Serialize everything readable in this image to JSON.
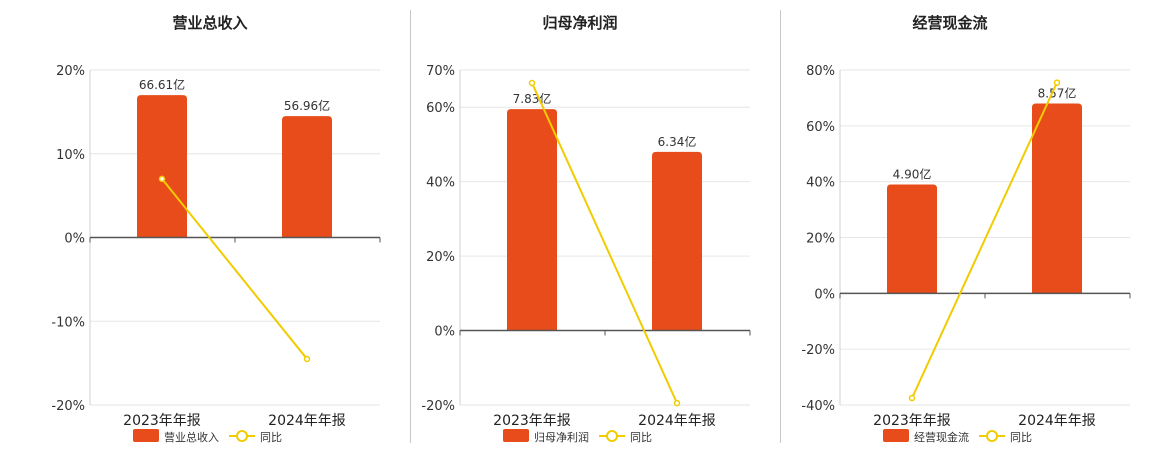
{
  "colors": {
    "bar": "#e84c1a",
    "line": "#f0cc00",
    "axis": "#555555",
    "grid": "#e6e6e6"
  },
  "chart_data": [
    {
      "type": "bar",
      "title": "营业总收入",
      "categories": [
        "2023年年报",
        "2024年年报"
      ],
      "series": [
        {
          "name": "营业总收入",
          "kind": "bar",
          "values": [
            17.0,
            14.5
          ],
          "data_labels": [
            "66.61亿",
            "56.96亿"
          ]
        },
        {
          "name": "同比",
          "kind": "line",
          "values": [
            7.0,
            -14.5
          ]
        }
      ],
      "yticks": [
        20,
        10,
        0,
        -10,
        -20
      ],
      "tick_labels": [
        "20%",
        "10%",
        "0%",
        "-10%",
        "-20%"
      ],
      "ylim": [
        -20,
        20
      ],
      "grid": true,
      "legend": "bottom"
    },
    {
      "type": "bar",
      "title": "归母净利润",
      "categories": [
        "2023年年报",
        "2024年年报"
      ],
      "series": [
        {
          "name": "归母净利润",
          "kind": "bar",
          "values": [
            59.5,
            48.0
          ],
          "data_labels": [
            "7.83亿",
            "6.34亿"
          ]
        },
        {
          "name": "同比",
          "kind": "line",
          "values": [
            66.5,
            -19.5
          ]
        }
      ],
      "yticks": [
        70,
        60,
        40,
        20,
        0,
        -20
      ],
      "tick_labels": [
        "70%",
        "60%",
        "40%",
        "20%",
        "0%",
        "-20%"
      ],
      "ylim": [
        -20,
        70
      ],
      "grid": true,
      "legend": "bottom"
    },
    {
      "type": "bar",
      "title": "经营现金流",
      "categories": [
        "2023年年报",
        "2024年年报"
      ],
      "series": [
        {
          "name": "经营现金流",
          "kind": "bar",
          "values": [
            39.0,
            68.0
          ],
          "data_labels": [
            "4.90亿",
            "8.57亿"
          ]
        },
        {
          "name": "同比",
          "kind": "line",
          "values": [
            -37.5,
            75.5
          ]
        }
      ],
      "yticks": [
        80,
        60,
        40,
        20,
        0,
        -20,
        -40
      ],
      "tick_labels": [
        "80%",
        "60%",
        "40%",
        "20%",
        "0%",
        "-20%",
        "-40%"
      ],
      "ylim": [
        -40,
        80
      ],
      "grid": true,
      "legend": "bottom"
    }
  ]
}
